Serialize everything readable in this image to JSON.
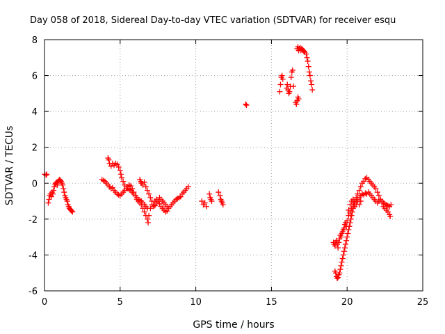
{
  "chart_data": {
    "type": "scatter",
    "title": "Day 058 of 2018, Sidereal Day-to-day VTEC variation (SDTVAR) for receiver esqu",
    "xlabel": "GPS time / hours",
    "ylabel": "SDTVAR / TECUs",
    "xlim": [
      0,
      25
    ],
    "ylim": [
      -6,
      8
    ],
    "xticks": [
      "0",
      "5",
      "10",
      "15",
      "20",
      "25"
    ],
    "yticks": [
      "-6",
      "-4",
      "-2",
      "0",
      "2",
      "4",
      "6",
      "8"
    ],
    "grid": true,
    "marker": "plus",
    "color": "#ff0000",
    "series": [
      {
        "name": "SDTVAR",
        "points": [
          [
            0.0,
            0.5
          ],
          [
            0.1,
            0.45
          ],
          [
            0.15,
            0.5
          ],
          [
            0.25,
            -1.1
          ],
          [
            0.3,
            -0.9
          ],
          [
            0.35,
            -0.7
          ],
          [
            0.4,
            -0.6
          ],
          [
            0.45,
            -0.75
          ],
          [
            0.5,
            -0.5
          ],
          [
            0.55,
            -0.6
          ],
          [
            0.6,
            -0.4
          ],
          [
            0.65,
            -0.2
          ],
          [
            0.7,
            -0.05
          ],
          [
            0.75,
            0.0
          ],
          [
            0.8,
            0.05
          ],
          [
            0.85,
            -0.1
          ],
          [
            0.9,
            0.1
          ],
          [
            0.95,
            0.15
          ],
          [
            1.0,
            0.2
          ],
          [
            1.05,
            0.15
          ],
          [
            1.1,
            0.1
          ],
          [
            1.15,
            0.0
          ],
          [
            1.2,
            -0.1
          ],
          [
            1.25,
            -0.3
          ],
          [
            1.3,
            -0.5
          ],
          [
            1.35,
            -0.7
          ],
          [
            1.4,
            -0.8
          ],
          [
            1.45,
            -0.9
          ],
          [
            1.5,
            -1.0
          ],
          [
            1.55,
            -1.2
          ],
          [
            1.6,
            -1.3
          ],
          [
            1.65,
            -1.4
          ],
          [
            1.7,
            -1.45
          ],
          [
            1.75,
            -1.5
          ],
          [
            1.8,
            -1.55
          ],
          [
            1.85,
            -1.6
          ],
          [
            3.8,
            0.2
          ],
          [
            3.9,
            0.15
          ],
          [
            4.0,
            0.1
          ],
          [
            4.1,
            0.0
          ],
          [
            4.2,
            -0.1
          ],
          [
            4.3,
            -0.2
          ],
          [
            4.4,
            -0.3
          ],
          [
            4.5,
            -0.25
          ],
          [
            4.6,
            -0.4
          ],
          [
            4.7,
            -0.5
          ],
          [
            4.8,
            -0.6
          ],
          [
            4.9,
            -0.65
          ],
          [
            5.0,
            -0.7
          ],
          [
            5.1,
            -0.6
          ],
          [
            5.2,
            -0.5
          ],
          [
            5.3,
            -0.4
          ],
          [
            5.4,
            -0.3
          ],
          [
            5.5,
            -0.2
          ],
          [
            5.6,
            -0.1
          ],
          [
            5.7,
            -0.15
          ],
          [
            5.8,
            -0.3
          ],
          [
            5.9,
            -0.5
          ],
          [
            6.0,
            -0.7
          ],
          [
            6.1,
            -0.9
          ],
          [
            6.2,
            -1.0
          ],
          [
            6.3,
            -1.1
          ],
          [
            6.4,
            -1.2
          ],
          [
            6.5,
            -1.4
          ],
          [
            6.6,
            -1.6
          ],
          [
            6.7,
            -1.8
          ],
          [
            6.8,
            -2.0
          ],
          [
            6.85,
            -2.2
          ],
          [
            6.9,
            -1.8
          ],
          [
            7.0,
            -1.4
          ],
          [
            7.1,
            -1.2
          ],
          [
            7.2,
            -1.3
          ],
          [
            7.3,
            -1.25
          ],
          [
            7.4,
            -1.1
          ],
          [
            7.5,
            -1.0
          ],
          [
            7.6,
            -1.15
          ],
          [
            7.7,
            -1.3
          ],
          [
            7.8,
            -1.4
          ],
          [
            7.9,
            -1.5
          ],
          [
            8.0,
            -1.6
          ],
          [
            8.1,
            -1.55
          ],
          [
            8.2,
            -1.4
          ],
          [
            8.3,
            -1.3
          ],
          [
            8.4,
            -1.2
          ],
          [
            8.5,
            -1.1
          ],
          [
            8.6,
            -1.0
          ],
          [
            8.7,
            -0.9
          ],
          [
            8.8,
            -0.85
          ],
          [
            8.9,
            -0.8
          ],
          [
            9.0,
            -0.75
          ],
          [
            9.1,
            -0.6
          ],
          [
            9.2,
            -0.5
          ],
          [
            9.3,
            -0.4
          ],
          [
            9.4,
            -0.3
          ],
          [
            9.5,
            -0.2
          ],
          [
            4.2,
            1.4
          ],
          [
            4.25,
            1.3
          ],
          [
            4.3,
            1.1
          ],
          [
            4.4,
            0.95
          ],
          [
            4.5,
            1.1
          ],
          [
            4.6,
            1.0
          ],
          [
            4.7,
            1.1
          ],
          [
            4.8,
            1.05
          ],
          [
            4.9,
            0.9
          ],
          [
            5.0,
            0.7
          ],
          [
            5.05,
            0.5
          ],
          [
            5.1,
            0.3
          ],
          [
            5.2,
            0.1
          ],
          [
            5.3,
            -0.1
          ],
          [
            5.4,
            -0.2
          ],
          [
            5.5,
            -0.3
          ],
          [
            5.6,
            -0.35
          ],
          [
            5.7,
            -0.4
          ],
          [
            5.8,
            -0.5
          ],
          [
            5.9,
            -0.6
          ],
          [
            6.0,
            -0.7
          ],
          [
            6.1,
            -0.8
          ],
          [
            6.2,
            -0.9
          ],
          [
            6.3,
            -0.95
          ],
          [
            6.4,
            -1.0
          ],
          [
            6.5,
            -1.1
          ],
          [
            6.6,
            -1.2
          ],
          [
            6.7,
            -1.3
          ],
          [
            6.8,
            -1.4
          ],
          [
            6.3,
            0.2
          ],
          [
            6.35,
            0.1
          ],
          [
            6.4,
            0.0
          ],
          [
            6.5,
            -0.1
          ],
          [
            6.6,
            0.05
          ],
          [
            6.7,
            -0.2
          ],
          [
            6.8,
            -0.4
          ],
          [
            6.9,
            -0.6
          ],
          [
            7.0,
            -0.8
          ],
          [
            7.1,
            -1.0
          ],
          [
            7.2,
            -1.2
          ],
          [
            7.3,
            -1.0
          ],
          [
            7.4,
            -0.9
          ],
          [
            7.5,
            -1.0
          ],
          [
            7.6,
            -0.8
          ],
          [
            7.7,
            -0.9
          ],
          [
            7.8,
            -1.0
          ],
          [
            7.9,
            -1.1
          ],
          [
            8.0,
            -1.2
          ],
          [
            8.1,
            -1.3
          ],
          [
            10.4,
            -1.0
          ],
          [
            10.5,
            -1.2
          ],
          [
            10.6,
            -1.1
          ],
          [
            10.7,
            -1.3
          ],
          [
            10.9,
            -0.6
          ],
          [
            10.95,
            -0.8
          ],
          [
            11.0,
            -0.9
          ],
          [
            11.05,
            -1.0
          ],
          [
            11.5,
            -0.5
          ],
          [
            11.6,
            -0.7
          ],
          [
            11.65,
            -0.9
          ],
          [
            11.7,
            -1.0
          ],
          [
            11.75,
            -1.1
          ],
          [
            11.8,
            -1.2
          ],
          [
            13.3,
            4.4
          ],
          [
            13.35,
            4.35
          ],
          [
            15.55,
            5.1
          ],
          [
            15.6,
            5.5
          ],
          [
            15.65,
            5.9
          ],
          [
            15.7,
            6.0
          ],
          [
            15.75,
            5.8
          ],
          [
            16.0,
            5.3
          ],
          [
            16.05,
            5.5
          ],
          [
            16.1,
            5.2
          ],
          [
            16.15,
            5.0
          ],
          [
            16.2,
            5.1
          ],
          [
            16.25,
            5.4
          ],
          [
            16.3,
            5.9
          ],
          [
            16.35,
            6.2
          ],
          [
            16.4,
            6.3
          ],
          [
            16.45,
            5.4
          ],
          [
            16.6,
            4.5
          ],
          [
            16.65,
            4.4
          ],
          [
            16.7,
            4.6
          ],
          [
            16.75,
            4.8
          ],
          [
            16.8,
            4.7
          ],
          [
            16.7,
            7.5
          ],
          [
            16.75,
            7.6
          ],
          [
            16.8,
            7.4
          ],
          [
            16.85,
            7.5
          ],
          [
            16.9,
            7.55
          ],
          [
            16.95,
            7.4
          ],
          [
            17.0,
            7.5
          ],
          [
            17.05,
            7.45
          ],
          [
            17.1,
            7.4
          ],
          [
            17.15,
            7.35
          ],
          [
            17.2,
            7.3
          ],
          [
            17.3,
            7.2
          ],
          [
            17.35,
            7.0
          ],
          [
            17.4,
            6.8
          ],
          [
            17.45,
            6.5
          ],
          [
            17.5,
            6.2
          ],
          [
            17.55,
            6.0
          ],
          [
            17.6,
            5.7
          ],
          [
            17.65,
            5.5
          ],
          [
            17.7,
            5.2
          ],
          [
            19.1,
            -3.3
          ],
          [
            19.15,
            -3.4
          ],
          [
            19.2,
            -3.5
          ],
          [
            19.25,
            -3.3
          ],
          [
            19.3,
            -3.2
          ],
          [
            19.35,
            -3.4
          ],
          [
            19.4,
            -3.6
          ],
          [
            19.45,
            -3.3
          ],
          [
            19.5,
            -3.1
          ],
          [
            19.55,
            -2.9
          ],
          [
            19.6,
            -3.0
          ],
          [
            19.65,
            -2.8
          ],
          [
            19.7,
            -2.7
          ],
          [
            19.75,
            -2.6
          ],
          [
            19.8,
            -2.5
          ],
          [
            19.85,
            -2.3
          ],
          [
            19.9,
            -2.2
          ],
          [
            19.95,
            -2.4
          ],
          [
            20.0,
            -2.1
          ],
          [
            20.1,
            -1.8
          ],
          [
            20.2,
            -1.7
          ],
          [
            19.2,
            -4.9
          ],
          [
            19.25,
            -5.0
          ],
          [
            19.3,
            -5.2
          ],
          [
            19.35,
            -5.3
          ],
          [
            19.4,
            -5.25
          ],
          [
            19.45,
            -5.1
          ],
          [
            19.5,
            -5.0
          ],
          [
            19.55,
            -4.8
          ],
          [
            19.6,
            -4.6
          ],
          [
            19.65,
            -4.4
          ],
          [
            19.7,
            -4.2
          ],
          [
            19.75,
            -4.0
          ],
          [
            19.8,
            -3.8
          ],
          [
            19.85,
            -3.6
          ],
          [
            19.9,
            -3.4
          ],
          [
            19.95,
            -3.2
          ],
          [
            20.0,
            -3.0
          ],
          [
            20.05,
            -2.8
          ],
          [
            20.1,
            -2.6
          ],
          [
            20.15,
            -2.4
          ],
          [
            20.2,
            -2.2
          ],
          [
            20.25,
            -2.0
          ],
          [
            20.3,
            -1.8
          ],
          [
            20.35,
            -1.6
          ],
          [
            20.4,
            -1.4
          ],
          [
            20.45,
            -1.2
          ],
          [
            20.5,
            -1.0
          ],
          [
            20.6,
            -0.8
          ],
          [
            20.7,
            -0.6
          ],
          [
            20.8,
            -0.4
          ],
          [
            20.9,
            -0.2
          ],
          [
            21.0,
            0.0
          ],
          [
            21.1,
            0.1
          ],
          [
            21.2,
            0.25
          ],
          [
            21.3,
            0.3
          ],
          [
            21.4,
            0.2
          ],
          [
            21.5,
            0.1
          ],
          [
            21.6,
            0.0
          ],
          [
            21.7,
            -0.1
          ],
          [
            21.8,
            -0.2
          ],
          [
            21.9,
            -0.3
          ],
          [
            22.0,
            -0.5
          ],
          [
            22.1,
            -0.7
          ],
          [
            22.2,
            -0.9
          ],
          [
            22.3,
            -1.1
          ],
          [
            22.4,
            -1.3
          ],
          [
            22.5,
            -1.4
          ],
          [
            22.6,
            -1.5
          ],
          [
            22.7,
            -1.6
          ],
          [
            22.8,
            -1.75
          ],
          [
            22.85,
            -1.85
          ],
          [
            20.2,
            -1.2
          ],
          [
            20.3,
            -1.0
          ],
          [
            20.4,
            -0.9
          ],
          [
            20.5,
            -1.1
          ],
          [
            20.6,
            -1.2
          ],
          [
            20.7,
            -1.0
          ],
          [
            20.8,
            -0.8
          ],
          [
            20.9,
            -0.7
          ],
          [
            21.0,
            -0.6
          ],
          [
            21.1,
            -0.65
          ],
          [
            21.2,
            -0.55
          ],
          [
            21.3,
            -0.6
          ],
          [
            21.4,
            -0.5
          ],
          [
            21.5,
            -0.6
          ],
          [
            21.6,
            -0.7
          ],
          [
            21.7,
            -0.8
          ],
          [
            21.8,
            -0.9
          ],
          [
            21.9,
            -1.0
          ],
          [
            22.0,
            -1.1
          ],
          [
            22.1,
            -1.0
          ],
          [
            22.2,
            -0.9
          ],
          [
            22.3,
            -1.0
          ],
          [
            22.4,
            -1.1
          ],
          [
            22.5,
            -1.15
          ],
          [
            22.6,
            -1.2
          ],
          [
            22.7,
            -1.25
          ],
          [
            22.8,
            -1.3
          ],
          [
            22.9,
            -1.2
          ],
          [
            20.1,
            -1.5
          ],
          [
            20.2,
            -1.6
          ],
          [
            20.3,
            -1.4
          ],
          [
            20.4,
            -1.2
          ],
          [
            20.5,
            -1.3
          ],
          [
            20.6,
            -1.0
          ],
          [
            20.7,
            -0.9
          ],
          [
            20.8,
            -1.2
          ],
          [
            20.9,
            -1.0
          ]
        ]
      }
    ]
  }
}
